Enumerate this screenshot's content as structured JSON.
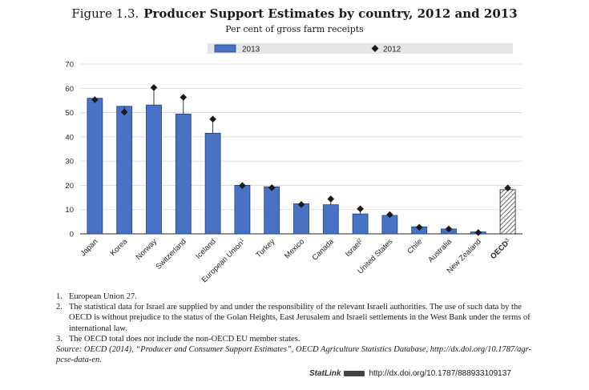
{
  "figure_label": "Figure 1.3.",
  "figure_title": "Producer Support Estimates by country, 2012 and 2013",
  "subtitle": "Per cent of gross farm receipts",
  "chart_data": {
    "type": "bar",
    "title": "Producer Support Estimates by country, 2012 and 2013",
    "ylabel": "Per cent of gross farm receipts",
    "ylim": [
      0,
      70
    ],
    "yticks": [
      0,
      10,
      20,
      30,
      40,
      50,
      60,
      70
    ],
    "legend_position": "top",
    "categories": [
      "Japan",
      "Korea",
      "Norway",
      "Switzerland",
      "Iceland",
      "European Union",
      "Turkey",
      "Mexico",
      "Canada",
      "Israel",
      "United States",
      "Chile",
      "Australia",
      "New Zealand",
      "OECD"
    ],
    "category_superscripts": [
      "",
      "",
      "",
      "",
      "",
      "1",
      "",
      "",
      "",
      "2",
      "",
      "",
      "",
      "",
      "3"
    ],
    "series": [
      {
        "name": "2013",
        "type": "bar",
        "color": "#4a72c4",
        "values": [
          55.9,
          52.6,
          53.1,
          49.4,
          41.5,
          20.0,
          19.4,
          12.4,
          12.0,
          8.2,
          7.6,
          2.9,
          2.0,
          0.8,
          18.2
        ]
      },
      {
        "name": "2012",
        "type": "marker",
        "marker": "diamond",
        "color": "#1a1a1a",
        "values": [
          55.3,
          50.2,
          60.3,
          56.3,
          47.3,
          19.9,
          19.0,
          12.1,
          14.4,
          10.3,
          7.9,
          2.7,
          2.0,
          0.5,
          18.9
        ]
      }
    ],
    "highlight_category": "OECD",
    "highlight_pattern": "hatched"
  },
  "notes": [
    {
      "num": "1.",
      "text": "European Union 27."
    },
    {
      "num": "2.",
      "text": "The statistical data for Israel are supplied by and under the responsibility of the relevant Israeli authorities. The use of such data by the OECD is without prejudice to the status of the Golan Heights, East Jerusalem and Israeli settlements in the West Bank under the terms of international law."
    },
    {
      "num": "3.",
      "text": "The OECD total does not include the non-OECD EU member states."
    }
  ],
  "source": "Source: OECD (2014), “Producer and Consumer Support Estimates”, OECD Agriculture Statistics Database, http://dx.doi.org/10.1787/agr-pcse-data-en.",
  "statlink": {
    "brand": "StatLink",
    "url": "http://dx.doi.org/10.1787/888933109137"
  }
}
